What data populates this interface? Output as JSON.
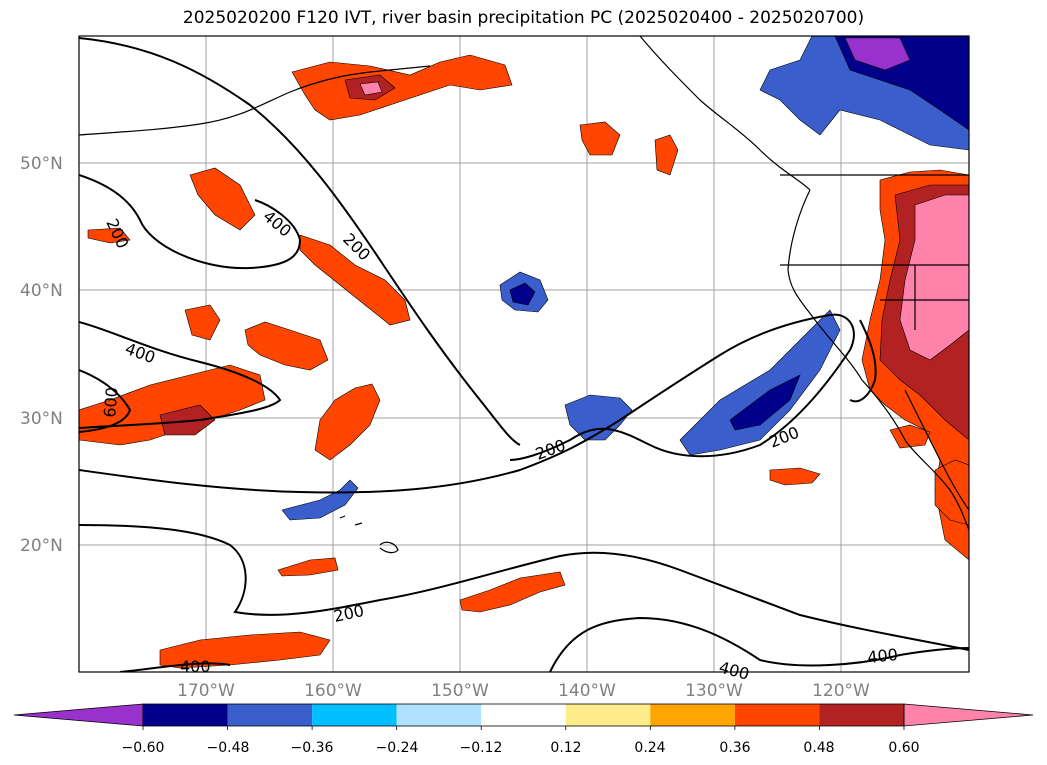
{
  "title": "2025020200 F120 IVT, river basin precipitation PC (2025020400 - 2025020700)",
  "map": {
    "lat_labels": [
      "50°N",
      "40°N",
      "30°N",
      "20°N"
    ],
    "lon_labels": [
      "170°W",
      "160°W",
      "150°W",
      "140°W",
      "130°W",
      "120°W"
    ],
    "contour_labels": [
      "200",
      "400",
      "200",
      "400",
      "600",
      "200",
      "200",
      "200",
      "400",
      "400",
      "400"
    ],
    "gridlines": true
  },
  "colorbar": {
    "ticks": [
      "−0.60",
      "−0.48",
      "−0.36",
      "−0.24",
      "−0.12",
      "0.12",
      "0.24",
      "0.36",
      "0.48",
      "0.60"
    ],
    "colors": [
      "#9932CC",
      "#00008B",
      "#3A5FCD",
      "#00BFFF",
      "#B0E2FF",
      "#FFFFFF",
      "#FFEC8B",
      "#FFA500",
      "#FF4500",
      "#B22222",
      "#FF82AB"
    ],
    "extend": "both"
  }
}
